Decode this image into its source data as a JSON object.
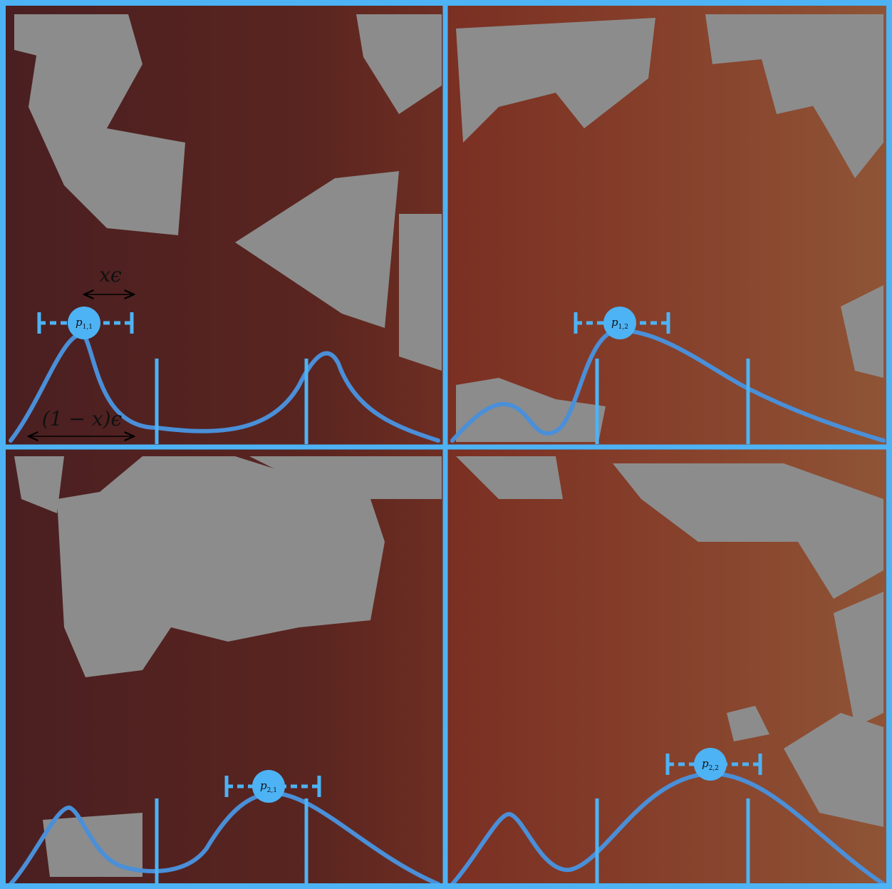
{
  "panels": [
    {
      "node": {
        "base": "p",
        "sub": "1,1"
      }
    },
    {
      "node": {
        "base": "p",
        "sub": "1,2"
      }
    },
    {
      "node": {
        "base": "p",
        "sub": "2,1"
      }
    },
    {
      "node": {
        "base": "p",
        "sub": "2,2"
      }
    }
  ],
  "annotations": {
    "short_arrow": "xϵ",
    "long_arrow": "(1 − x)ϵ"
  }
}
